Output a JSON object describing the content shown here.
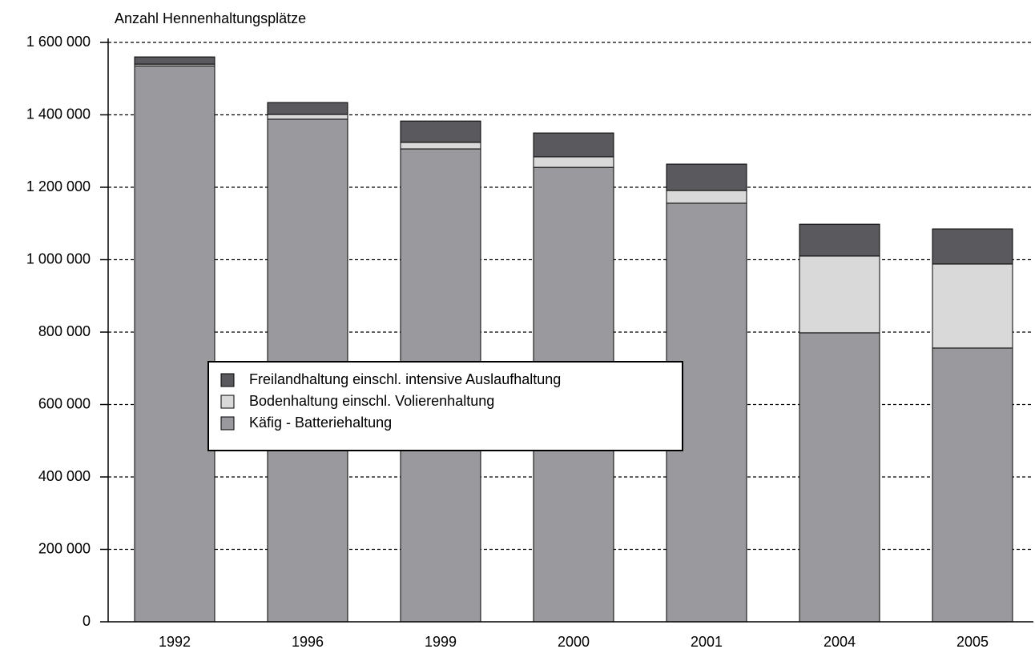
{
  "chart_data": {
    "type": "stacked_bar",
    "y_axis_label": "Anzahl Hennenhaltungsplätze",
    "categories": [
      "1992",
      "1996",
      "1999",
      "2000",
      "2001",
      "2004",
      "2005"
    ],
    "series": [
      {
        "name": "Käfig - Batteriehaltung",
        "color": "#9a9a9e",
        "values": [
          1535000,
          1388000,
          1306000,
          1255000,
          1156000,
          798000,
          756000
        ]
      },
      {
        "name": "Bodenhaltung einschl. Volierenhaltung",
        "color": "#d9d9d9",
        "values": [
          5000,
          13000,
          18000,
          29000,
          35000,
          212000,
          232000
        ]
      },
      {
        "name": "Freilandhaltung einschl. intensive Auslaufhaltung",
        "color": "#5a5a5e",
        "values": [
          20000,
          33000,
          59000,
          66000,
          73000,
          88000,
          97000
        ]
      }
    ],
    "ylim": [
      0,
      1600000
    ],
    "yticks": [
      0,
      {
        "value": 200000,
        "label": "200 000"
      },
      {
        "value": 400000,
        "label": "400 000"
      },
      {
        "value": 600000,
        "label": "600 000"
      },
      {
        "value": 800000,
        "label": "800 000"
      },
      {
        "value": 1000000,
        "label": "1 000 000"
      },
      {
        "value": 1200000,
        "label": "1 200 000"
      },
      {
        "value": 1400000,
        "label": "1 400 000"
      },
      {
        "value": 1600000,
        "label": "1 600 000"
      }
    ],
    "grid": true
  }
}
